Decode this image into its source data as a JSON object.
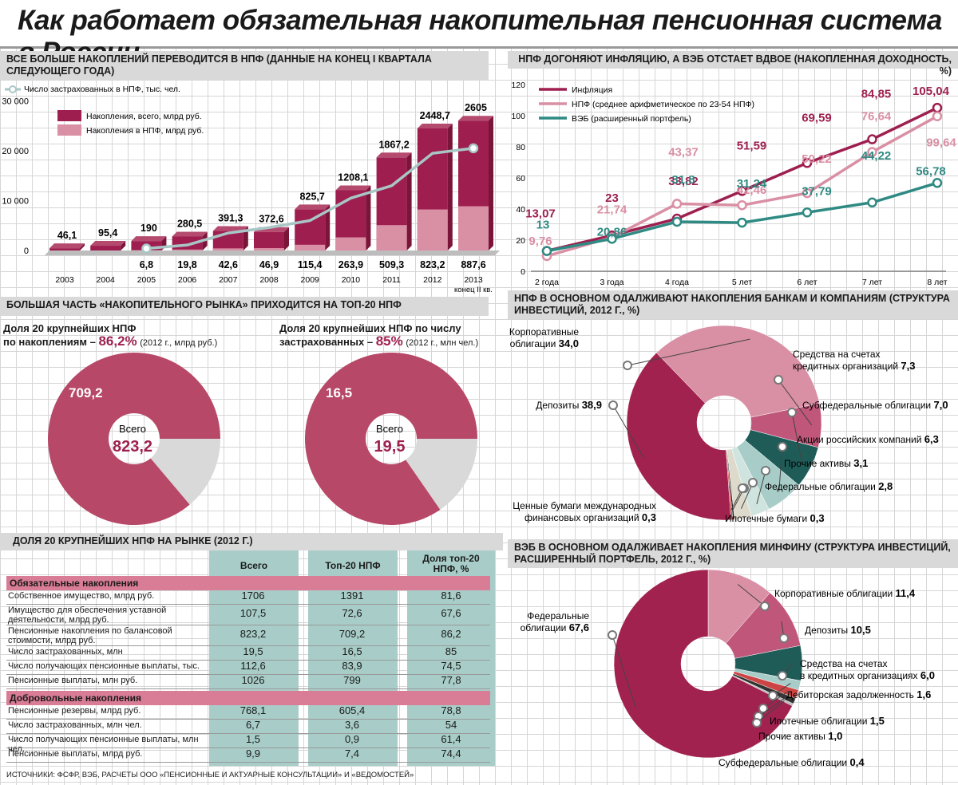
{
  "title": "Как работает обязательная накопительная пенсионная система в России",
  "panel1": {
    "header": "ВСЕ БОЛЬШЕ НАКОПЛЕНИЙ ПЕРЕВОДИТСЯ В НПФ (ДАННЫЕ НА КОНЕЦ I КВАРТАЛА СЛЕДУЮЩЕГО ГОДА)",
    "source_note": "ИСТОЧНИКИ: ФСФР, ВЭБ, РАСЧЕТЫ ООО «ПЕНСИОННЫЕ И АКТУАРНЫЕ КОНСУЛЬТАЦИИ» И «ВЕДОМОСТЕЙ»"
  },
  "panel2": {
    "header": "НПФ ДОГОНЯЮТ ИНФЛЯЦИЮ, А ВЭБ ОТСТАЕТ ВДВОЕ (НАКОПЛЕННАЯ ДОХОДНОСТЬ, %)"
  },
  "panel3": {
    "header": "БОЛЬШАЯ ЧАСТЬ «НАКОПИТЕЛЬНОГО РЫНКА» ПРИХОДИТСЯ НА ТОП-20 НПФ",
    "left_title_1": "Доля 20 крупнейших НПФ",
    "left_title_2": "по накоплениям – ",
    "left_pct": "86,2%",
    "left_note": "(2012 г., млрд руб.)",
    "right_title_1": "Доля 20 крупнейших НПФ по числу",
    "right_title_2": "застрахованных – ",
    "right_pct": "85%",
    "right_note": "(2012 г., млн чел.)",
    "total_label": "Всего"
  },
  "panel4": {
    "header": "НПФ В ОСНОВНОМ ОДАЛЖИВАЮТ НАКОПЛЕНИЯ БАНКАМ И КОМПАНИЯМ (СТРУКТУРА ИНВЕСТИЦИЙ, 2012 Г., %)"
  },
  "panel5": {
    "header": "ВЭБ В ОСНОВНОМ ОДАЛЖИВАЕТ НАКОПЛЕНИЯ МИНФИНУ (СТРУКТУРА ИНВЕСТИЦИЙ, РАСШИРЕННЫЙ ПОРТФЕЛЬ, 2012 Г., %)"
  },
  "panel6": {
    "header": "ДОЛЯ 20 КРУПНЕЙШИХ НПФ НА РЫНКЕ (2012 Г.)",
    "columns": [
      "Всего",
      "Топ-20 НПФ",
      "Доля топ-20 НПФ, %"
    ],
    "section1": "Обязательные накопления",
    "rows1": [
      {
        "label": "Собственное имущество, млрд руб.",
        "v": [
          "1706",
          "1391",
          "81,6"
        ]
      },
      {
        "label": "Имущество для обеспечения уставной деятельности, млрд руб.",
        "v": [
          "107,5",
          "72,6",
          "67,6"
        ]
      },
      {
        "label": "Пенсионные накопления по балансовой стоимости, млрд руб.",
        "v": [
          "823,2",
          "709,2",
          "86,2"
        ]
      },
      {
        "label": "Число застрахованных, млн",
        "v": [
          "19,5",
          "16,5",
          "85"
        ]
      },
      {
        "label": "Число получающих пенсионные выплаты, тыс.",
        "v": [
          "112,6",
          "83,9",
          "74,5"
        ]
      },
      {
        "label": "Пенсионные выплаты, млн руб.",
        "v": [
          "1026",
          "799",
          "77,8"
        ]
      }
    ],
    "section2": "Добровольные накопления",
    "rows2": [
      {
        "label": "Пенсионные резервы, млрд руб.",
        "v": [
          "768,1",
          "605,4",
          "78,8"
        ]
      },
      {
        "label": "Число застрахованных, млн чел.",
        "v": [
          "6,7",
          "3,6",
          "54"
        ]
      },
      {
        "label": "Число получающих пенсионные выплаты, млн чел.",
        "v": [
          "1,5",
          "0,9",
          "61,4"
        ]
      },
      {
        "label": "Пенсионные выплаты, млрд руб.",
        "v": [
          "9,9",
          "7,4",
          "74,4"
        ]
      }
    ]
  },
  "colors": {
    "dark": "#9e1f4f",
    "light": "#d98fa4",
    "teal": "#2e8a83",
    "darkteal": "#1f5c58",
    "grey": "#d9d9d9",
    "tealbg": "#a8cdc8"
  },
  "chart_data": [
    {
      "type": "bar",
      "title": "",
      "categories": [
        "2003",
        "2004",
        "2005",
        "2006",
        "2007",
        "2008",
        "2009",
        "2010",
        "2011",
        "2012",
        "2013"
      ],
      "category_notes": {
        "2013": "конец II кв."
      },
      "series": [
        {
          "name": "Накопления, всего, млрд руб.",
          "values": [
            46.1,
            95.4,
            190,
            280.5,
            391.3,
            372.6,
            825.7,
            1208.1,
            1867.2,
            2448.7,
            2605
          ],
          "labels": [
            "46,1",
            "95,4",
            "190",
            "280,5",
            "391,3",
            "372,6",
            "825,7",
            "1208,1",
            "1867,2",
            "2448,7",
            "2605"
          ]
        },
        {
          "name": "Накопления в НПФ, млрд руб.",
          "values": [
            0,
            0,
            6.8,
            19.8,
            42.6,
            46.9,
            115.4,
            263.9,
            509.3,
            823.2,
            887.6
          ],
          "labels": [
            "",
            "",
            "6,8",
            "19,8",
            "42,6",
            "46,9",
            "115,4",
            "263,9",
            "509,3",
            "823,2",
            "887,6"
          ]
        },
        {
          "name": "Число застрахованных в НПФ, тыс. чел.",
          "type": "line",
          "values": [
            null,
            null,
            400,
            1100,
            3500,
            4600,
            6000,
            10500,
            13000,
            19500,
            20500
          ]
        }
      ],
      "yticks": [
        "0",
        "10 000",
        "20 000",
        "30 000"
      ],
      "ylim": [
        0,
        30000
      ]
    },
    {
      "type": "line",
      "title": "",
      "categories": [
        "2 года",
        "3 года",
        "4 года",
        "5 лет",
        "6 лет",
        "7 лет",
        "8 лет"
      ],
      "ylim": [
        0,
        120
      ],
      "yticks": [
        "0",
        "20",
        "40",
        "60",
        "80",
        "100",
        "120"
      ],
      "series": [
        {
          "name": "Инфляция",
          "values": [
            13.07,
            23,
            33.82,
            51.59,
            69.59,
            84.85,
            105.04
          ],
          "labels": [
            "13,07",
            "23",
            "33,82",
            "51,59",
            "69,59",
            "84,85",
            "105,04"
          ]
        },
        {
          "name": "НПФ (среднее арифметическое по 23-54 НПФ)",
          "values": [
            9.76,
            21.74,
            43.37,
            42.46,
            50.22,
            76.64,
            99.64
          ],
          "labels": [
            "9,76",
            "21,74",
            "43,37",
            "42,46",
            "50,22",
            "76,64",
            "99,64"
          ]
        },
        {
          "name": "ВЭБ (расширенный портфель)",
          "values": [
            13,
            20.86,
            31.8,
            31.24,
            37.79,
            44.22,
            56.78
          ],
          "labels": [
            "13",
            "20,86",
            "31,8",
            "31,24",
            "37,79",
            "44,22",
            "56,78"
          ]
        }
      ]
    },
    {
      "type": "pie",
      "title": "",
      "center_value": "823,2",
      "slices": [
        {
          "name": "Топ-20",
          "value": 709.2,
          "label": "709,2"
        },
        {
          "name": "Остальные",
          "value": 114
        }
      ]
    },
    {
      "type": "pie",
      "title": "",
      "center_value": "19,5",
      "slices": [
        {
          "name": "Топ-20",
          "value": 16.5,
          "label": "16,5"
        },
        {
          "name": "Остальные",
          "value": 3
        }
      ]
    },
    {
      "type": "pie",
      "title": "",
      "slices": [
        {
          "name": "Корпоративные облигации",
          "value": 34.0,
          "label": "34,0"
        },
        {
          "name": "Средства на счетах кредитных организаций",
          "value": 7.3,
          "label": "7,3"
        },
        {
          "name": "Субфедеральные облигации",
          "value": 7.0,
          "label": "7,0"
        },
        {
          "name": "Акции российских компаний",
          "value": 6.3,
          "label": "6,3"
        },
        {
          "name": "Прочие активы",
          "value": 3.1,
          "label": "3,1"
        },
        {
          "name": "Федеральные облигации",
          "value": 2.8,
          "label": "2,8"
        },
        {
          "name": "Ипотечные бумаги",
          "value": 0.3,
          "label": "0,3"
        },
        {
          "name": "Ценные бумаги международных финансовых организаций",
          "value": 0.3,
          "label": "0,3"
        },
        {
          "name": "Депозиты",
          "value": 38.9,
          "label": "38,9"
        }
      ]
    },
    {
      "type": "pie",
      "title": "",
      "slices": [
        {
          "name": "Корпоративные облигации",
          "value": 11.4,
          "label": "11,4"
        },
        {
          "name": "Депозиты",
          "value": 10.5,
          "label": "10,5"
        },
        {
          "name": "Средства на счетах в кредитных организациях",
          "value": 6.0,
          "label": "6,0"
        },
        {
          "name": "Дебиторская задолженность",
          "value": 1.6,
          "label": "1,6"
        },
        {
          "name": "Ипотечные облигации",
          "value": 1.5,
          "label": "1,5"
        },
        {
          "name": "Прочие активы",
          "value": 1.0,
          "label": "1,0"
        },
        {
          "name": "Субфедеральные облигации",
          "value": 0.4,
          "label": "0,4"
        },
        {
          "name": "Федеральные облигации",
          "value": 67.6,
          "label": "67,6"
        }
      ]
    }
  ]
}
